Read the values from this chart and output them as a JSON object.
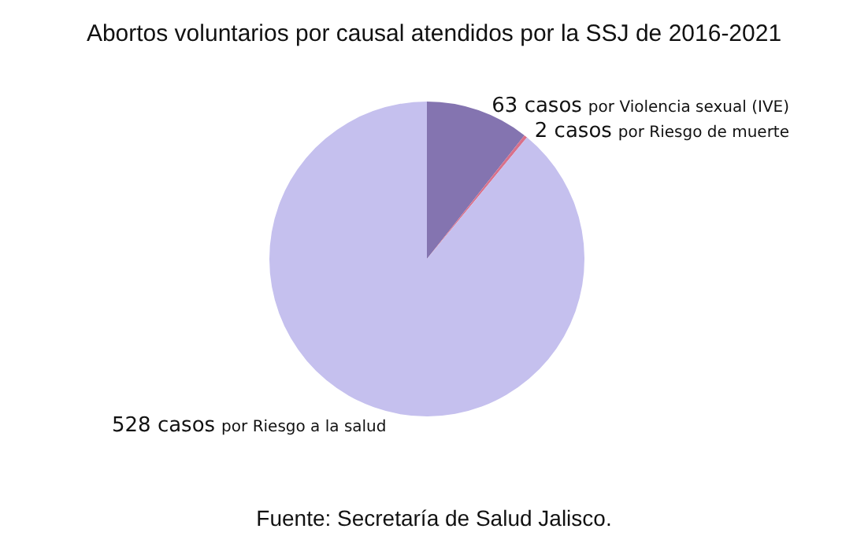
{
  "chart_data": {
    "type": "pie",
    "title": "Abortos voluntarios por causal atendidos por la SSJ de 2016-2021",
    "categories": [
      "por Violencia sexual (IVE)",
      "por Riesgo de muerte",
      "por Riesgo a la salud"
    ],
    "values": [
      63,
      2,
      528
    ],
    "colors": [
      "#8474b0",
      "#d9708a",
      "#c5c0ee"
    ],
    "value_labels": [
      "63 casos",
      "2 casos",
      "528 casos"
    ],
    "legend": false,
    "annotations": [
      "Fuente: Secretaría de Salud Jalisco."
    ]
  }
}
